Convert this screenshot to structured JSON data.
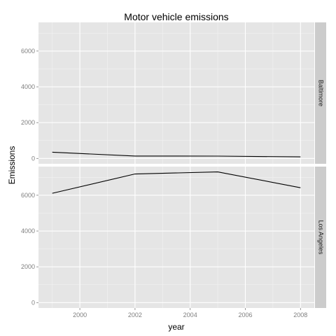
{
  "chart_data": {
    "type": "line",
    "title": "Motor vehicle emissions",
    "xlabel": "year",
    "ylabel": "Emissions",
    "x_ticks": [
      2000,
      2002,
      2004,
      2006,
      2008
    ],
    "y_ticks": [
      0,
      2000,
      4000,
      6000
    ],
    "xlim": [
      1998.5,
      2008.5
    ],
    "ylim": [
      -300,
      7600
    ],
    "grid": true,
    "facets": [
      {
        "label": "Baltimore",
        "x": [
          1999,
          2002,
          2005,
          2008
        ],
        "y": [
          346.8,
          134.3,
          130.4,
          88.3
        ]
      },
      {
        "label": "Los Angeles",
        "x": [
          1999,
          2002,
          2005,
          2008
        ],
        "y": [
          6109.7,
          7188.7,
          7304.1,
          6421.0
        ]
      }
    ],
    "colors": {
      "panel": "#e5e5e5",
      "grid_major": "#ffffff",
      "grid_minor": "#f2f2f2",
      "strip": "#cccccc",
      "line": "#000000"
    }
  }
}
